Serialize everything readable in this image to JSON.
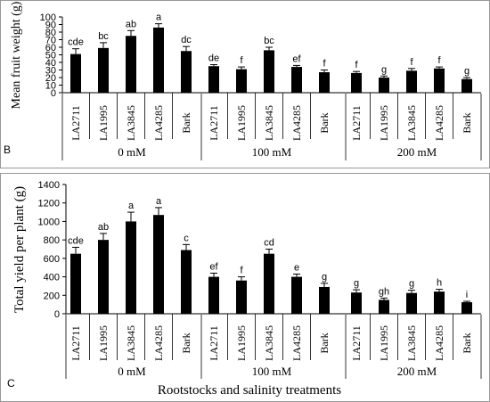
{
  "figure": {
    "xlabel": "Rootstocks and salinity treatments",
    "group_labels": [
      "0 mM",
      "100 mM",
      "200 mM"
    ],
    "rootstocks": [
      "LA2711",
      "LA1995",
      "LA3845",
      "LA4285",
      "Bark"
    ]
  },
  "chart_data": [
    {
      "type": "bar",
      "panel": "B",
      "ylabel": "Mean fruit weight (g)",
      "ylim": [
        0,
        100
      ],
      "yticks": [
        0,
        10,
        20,
        30,
        40,
        50,
        60,
        70,
        80,
        90,
        100
      ],
      "categories": [
        "LA2711",
        "LA1995",
        "LA3845",
        "LA4285",
        "Bark",
        "LA2711",
        "LA1995",
        "LA3845",
        "LA4285",
        "Bark",
        "LA2711",
        "LA1995",
        "LA3845",
        "LA4285",
        "Bark"
      ],
      "groups": [
        "0 mM",
        "100 mM",
        "200 mM"
      ],
      "values": [
        51,
        59,
        75,
        86,
        55,
        35,
        31,
        56,
        34,
        27,
        26,
        20,
        29,
        32,
        18
      ],
      "errors": [
        7,
        7,
        7,
        5,
        6,
        2,
        3,
        4,
        2,
        3,
        2,
        2,
        3,
        2,
        2
      ],
      "letters": [
        "cde",
        "bc",
        "ab",
        "a",
        "dc",
        "de",
        "f",
        "bc",
        "ef",
        "f",
        "f",
        "g",
        "f",
        "f",
        "g"
      ],
      "grid": false
    },
    {
      "type": "bar",
      "panel": "C",
      "ylabel": "Total yield per plant (g)",
      "ylim": [
        0,
        1400
      ],
      "yticks": [
        0,
        200,
        400,
        600,
        800,
        1000,
        1200,
        1400
      ],
      "categories": [
        "LA2711",
        "LA1995",
        "LA3845",
        "LA4285",
        "Bark",
        "LA2711",
        "LA1995",
        "LA3845",
        "LA4285",
        "Bark",
        "LA2711",
        "LA1995",
        "LA3845",
        "LA4285",
        "Bark"
      ],
      "groups": [
        "0 mM",
        "100 mM",
        "200 mM"
      ],
      "values": [
        650,
        800,
        1000,
        1070,
        690,
        400,
        360,
        650,
        400,
        290,
        230,
        150,
        225,
        240,
        125
      ],
      "errors": [
        70,
        70,
        100,
        80,
        60,
        40,
        40,
        50,
        30,
        40,
        30,
        20,
        30,
        25,
        10
      ],
      "letters": [
        "cde",
        "ab",
        "a",
        "a",
        "c",
        "ef",
        "f",
        "cd",
        "e",
        "g",
        "g",
        "gh",
        "g",
        "h",
        "i"
      ],
      "grid": false
    }
  ]
}
